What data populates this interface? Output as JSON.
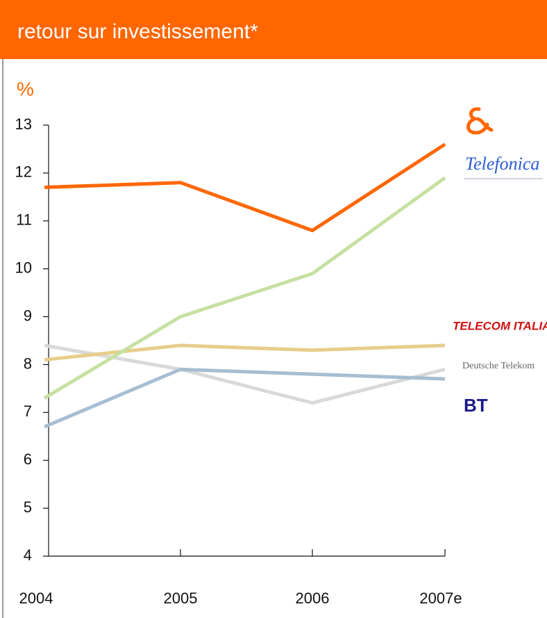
{
  "chart_data": {
    "type": "line",
    "title": "retour sur investissement*",
    "y_unit": "%",
    "x": [
      2004,
      2005,
      2006,
      "2007e"
    ],
    "ylim": [
      4,
      13
    ],
    "yticks": [
      4,
      5,
      6,
      7,
      8,
      9,
      10,
      11,
      12,
      13
    ],
    "series": [
      {
        "color": "#ff6600",
        "values": [
          11.7,
          11.8,
          10.8,
          12.6
        ]
      },
      {
        "name": "Telefonica",
        "color": "#c6e0a2",
        "values": [
          7.3,
          9.0,
          9.9,
          11.9
        ]
      },
      {
        "name": "TELECOM ITALIA",
        "color": "#e8cd8c",
        "values": [
          8.1,
          8.4,
          8.3,
          8.4
        ]
      },
      {
        "name": "Deutsche Telekom",
        "color": "#d9d9d9",
        "values": [
          8.4,
          7.9,
          7.2,
          7.9
        ]
      },
      {
        "name": "BT",
        "color": "#a6bed2",
        "values": [
          6.7,
          7.9,
          7.8,
          7.7
        ]
      }
    ]
  }
}
